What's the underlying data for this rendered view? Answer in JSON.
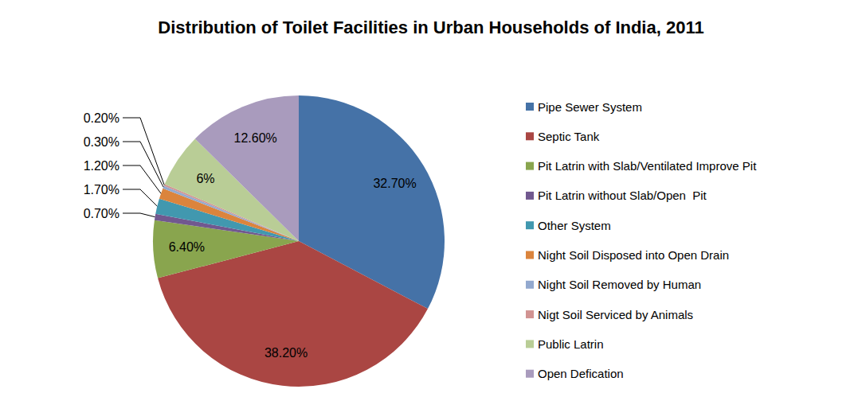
{
  "chart_data": {
    "type": "pie",
    "title": "Distribution of Toilet Facilities in Urban Households of India, 2011",
    "categories": [
      "Pipe Sewer System",
      "Septic Tank",
      "Pit Latrin with Slab/Ventilated Improve Pit",
      "Pit Latrin without Slab/Open  Pit",
      "Other System",
      "Night Soil Disposed into Open Drain",
      "Night Soil Removed by Human",
      "Nigt Soil Serviced by Animals",
      "Public Latrin",
      "Open Defication"
    ],
    "values": [
      32.7,
      38.2,
      6.4,
      0.7,
      1.7,
      1.2,
      0.3,
      0.2,
      6,
      12.6
    ],
    "value_labels": [
      "32.70%",
      "38.20%",
      "6.40%",
      "0.70%",
      "1.70%",
      "1.20%",
      "0.30%",
      "0.20%",
      "6%",
      "12.60%"
    ],
    "colors": [
      "#4572a7",
      "#aa4643",
      "#89a54e",
      "#71588f",
      "#4198af",
      "#db843d",
      "#93a9cf",
      "#d19392",
      "#b9cd96",
      "#a99bbd"
    ],
    "data_labels": true,
    "legend": "right"
  }
}
